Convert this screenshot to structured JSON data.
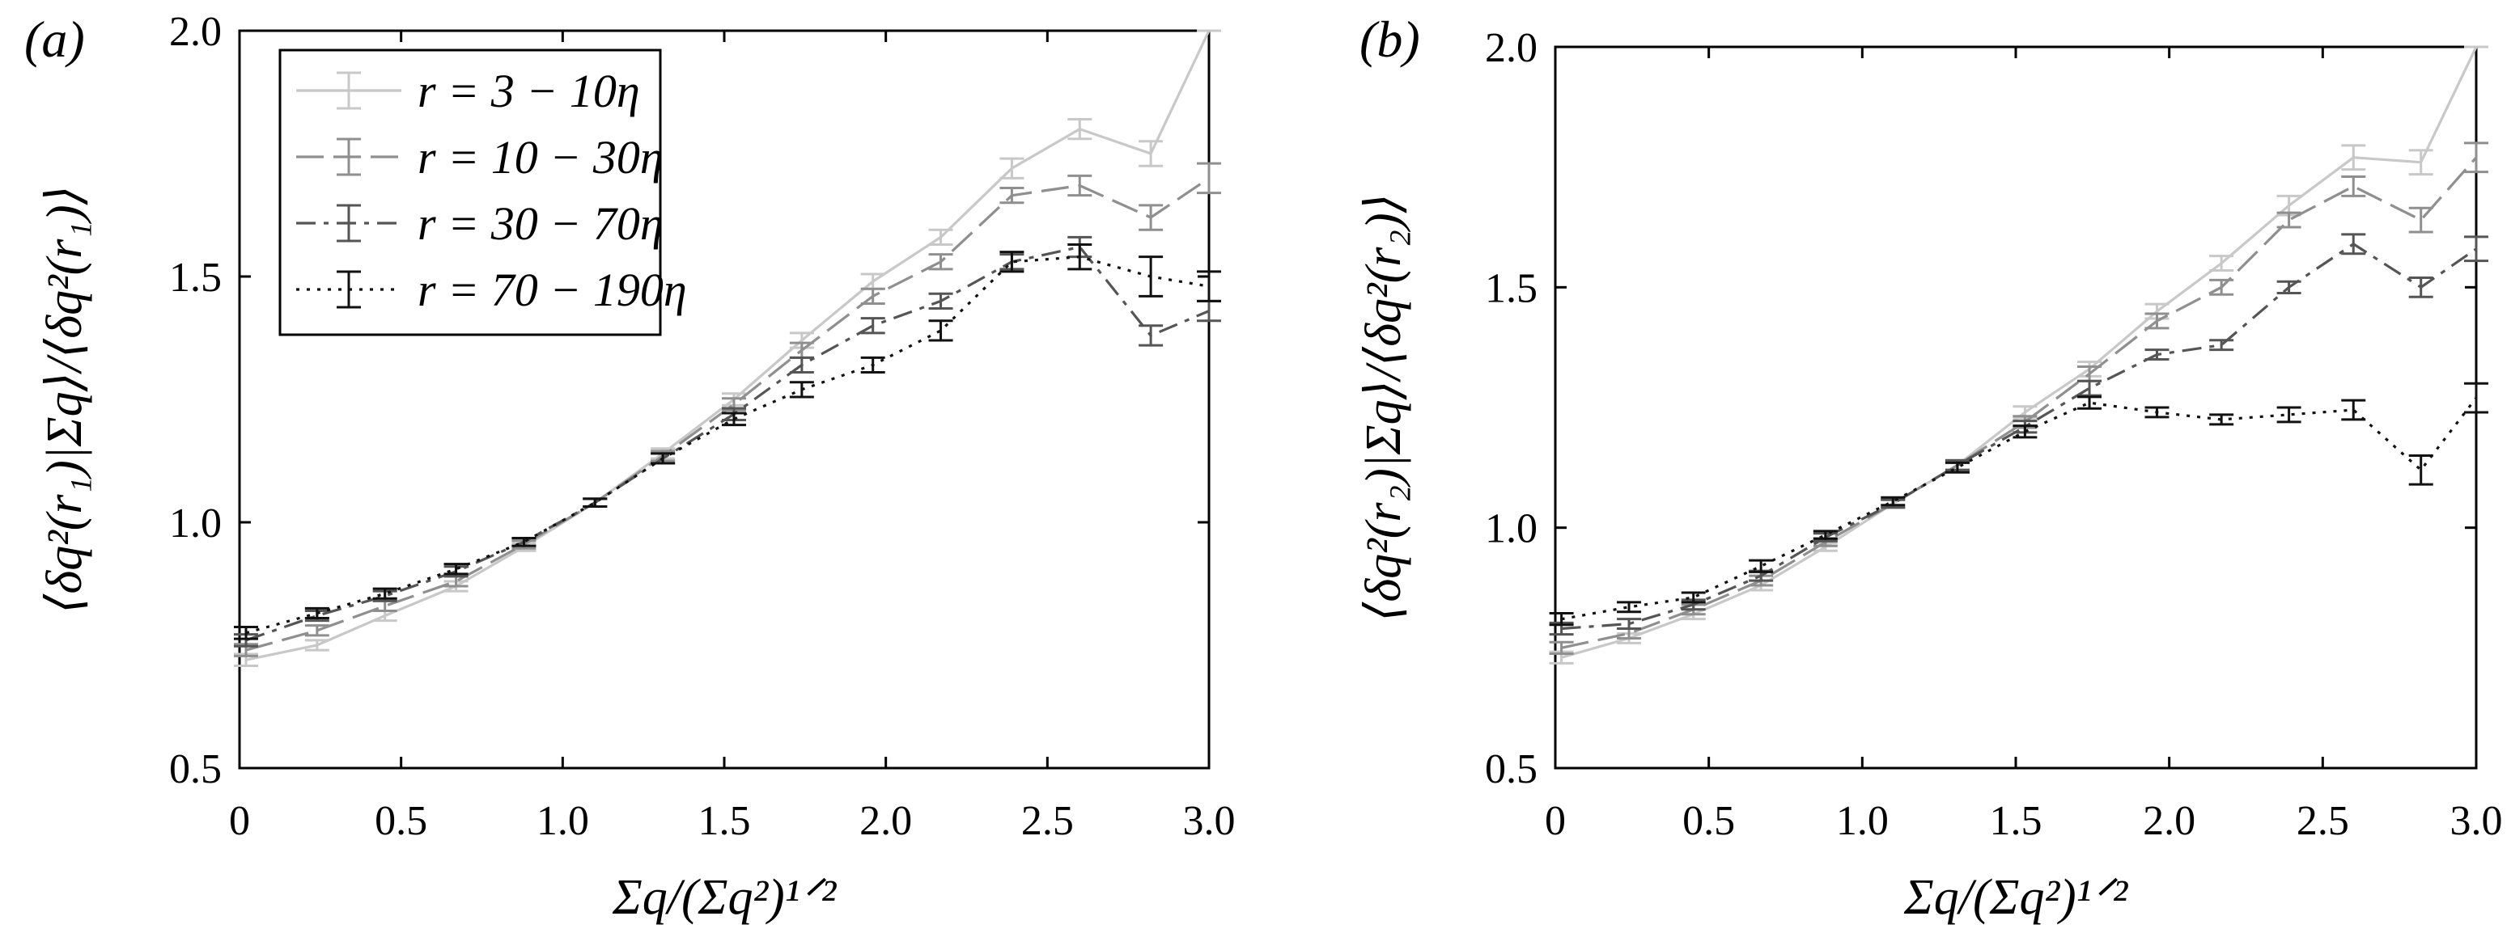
{
  "chart_data": [
    {
      "type": "line",
      "panel_label": "(a)",
      "xlabel": "Σq/(Σq²)¹ᐟ²",
      "ylabel": "⟨δq²(r₁)|Σq⟩/⟨δq²(r₁)⟩",
      "xlim": [
        0,
        3.0
      ],
      "ylim": [
        0.5,
        2.0
      ],
      "x_ticks": [
        "0",
        "0.5",
        "1.0",
        "1.5",
        "2.0",
        "2.5",
        "3.0"
      ],
      "y_ticks": [
        "0.5",
        "1.0",
        "1.5",
        "2.0"
      ],
      "legend": {
        "placement": "top-left"
      },
      "x": [
        0.02,
        0.24,
        0.45,
        0.67,
        0.88,
        1.1,
        1.31,
        1.53,
        1.74,
        1.96,
        2.17,
        2.39,
        2.6,
        2.82,
        3.0
      ],
      "series": [
        {
          "name": "r = 3 − 10η",
          "color": "#c8c8c8",
          "dash": "solid",
          "values": [
            0.72,
            0.75,
            0.81,
            0.87,
            0.95,
            1.04,
            1.14,
            1.25,
            1.37,
            1.49,
            1.58,
            1.72,
            1.8,
            1.75,
            2.0
          ],
          "errors": [
            0.012,
            0.01,
            0.01,
            0.01,
            0.008,
            0.008,
            0.01,
            0.012,
            0.015,
            0.015,
            0.015,
            0.02,
            0.02,
            0.025,
            0.0
          ]
        },
        {
          "name": "r = 10 − 30η",
          "color": "#8f8f8f",
          "dash": "long-dash",
          "values": [
            0.74,
            0.78,
            0.83,
            0.88,
            0.955,
            1.04,
            1.135,
            1.24,
            1.35,
            1.46,
            1.53,
            1.665,
            1.685,
            1.62,
            1.7
          ],
          "errors": [
            0.012,
            0.01,
            0.01,
            0.01,
            0.008,
            0.008,
            0.01,
            0.012,
            0.015,
            0.015,
            0.015,
            0.015,
            0.02,
            0.025,
            0.03
          ]
        },
        {
          "name": "r = 30 − 70η",
          "color": "#555555",
          "dash": "dash-dot",
          "values": [
            0.76,
            0.81,
            0.85,
            0.9,
            0.96,
            1.04,
            1.13,
            1.22,
            1.32,
            1.4,
            1.45,
            1.53,
            1.56,
            1.38,
            1.43
          ],
          "errors": [
            0.012,
            0.01,
            0.01,
            0.01,
            0.008,
            0.008,
            0.01,
            0.012,
            0.015,
            0.015,
            0.015,
            0.015,
            0.02,
            0.02,
            0.02
          ]
        },
        {
          "name": "r = 70 − 190η",
          "color": "#111111",
          "dash": "dotted",
          "values": [
            0.775,
            0.815,
            0.855,
            0.905,
            0.96,
            1.04,
            1.13,
            1.21,
            1.27,
            1.32,
            1.39,
            1.53,
            1.54,
            1.5,
            1.48
          ],
          "errors": [
            0.012,
            0.01,
            0.01,
            0.01,
            0.008,
            0.008,
            0.01,
            0.012,
            0.015,
            0.015,
            0.02,
            0.02,
            0.025,
            0.04,
            0.03
          ]
        }
      ]
    },
    {
      "type": "line",
      "panel_label": "(b)",
      "xlabel": "Σq/(Σq²)¹ᐟ²",
      "ylabel": "⟨δq²(r₂)|Σq⟩/⟨δq²(r₂)⟩",
      "xlim": [
        0,
        3.0
      ],
      "ylim": [
        0.5,
        2.0
      ],
      "x_ticks": [
        "0",
        "0.5",
        "1.0",
        "1.5",
        "2.0",
        "2.5",
        "3.0"
      ],
      "y_ticks": [
        "0.5",
        "1.0",
        "1.5",
        "2.0"
      ],
      "x": [
        0.02,
        0.24,
        0.45,
        0.67,
        0.88,
        1.1,
        1.31,
        1.53,
        1.74,
        1.96,
        2.17,
        2.39,
        2.6,
        2.82,
        3.0
      ],
      "series": [
        {
          "name": "r = 3 − 10η",
          "color": "#c8c8c8",
          "dash": "solid",
          "values": [
            0.73,
            0.77,
            0.82,
            0.88,
            0.96,
            1.05,
            1.13,
            1.24,
            1.33,
            1.45,
            1.55,
            1.67,
            1.77,
            1.76,
            2.0
          ],
          "errors": [
            0.012,
            0.01,
            0.01,
            0.01,
            0.008,
            0.008,
            0.01,
            0.012,
            0.015,
            0.015,
            0.015,
            0.02,
            0.025,
            0.025,
            0.0
          ]
        },
        {
          "name": "r = 10 − 30η",
          "color": "#8f8f8f",
          "dash": "long-dash",
          "values": [
            0.75,
            0.78,
            0.83,
            0.89,
            0.97,
            1.05,
            1.13,
            1.22,
            1.32,
            1.43,
            1.5,
            1.64,
            1.71,
            1.64,
            1.77
          ],
          "errors": [
            0.012,
            0.01,
            0.01,
            0.01,
            0.008,
            0.008,
            0.01,
            0.012,
            0.015,
            0.015,
            0.015,
            0.015,
            0.02,
            0.025,
            0.03
          ]
        },
        {
          "name": "r = 30 − 70η",
          "color": "#555555",
          "dash": "dash-dot",
          "values": [
            0.79,
            0.8,
            0.84,
            0.9,
            0.98,
            1.05,
            1.13,
            1.21,
            1.29,
            1.36,
            1.38,
            1.5,
            1.59,
            1.5,
            1.58
          ],
          "errors": [
            0.012,
            0.01,
            0.01,
            0.01,
            0.008,
            0.008,
            0.01,
            0.012,
            0.015,
            0.01,
            0.01,
            0.012,
            0.02,
            0.02,
            0.025
          ]
        },
        {
          "name": "r = 70 − 190η",
          "color": "#111111",
          "dash": "dotted",
          "values": [
            0.81,
            0.835,
            0.855,
            0.92,
            0.985,
            1.055,
            1.125,
            1.2,
            1.26,
            1.24,
            1.225,
            1.235,
            1.245,
            1.12,
            1.27
          ],
          "errors": [
            0.012,
            0.01,
            0.01,
            0.012,
            0.008,
            0.008,
            0.01,
            0.012,
            0.012,
            0.01,
            0.01,
            0.015,
            0.02,
            0.03,
            0.03
          ]
        }
      ]
    }
  ]
}
